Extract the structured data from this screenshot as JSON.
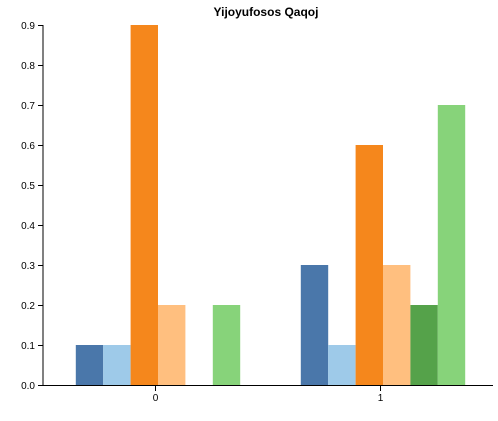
{
  "chart_data": {
    "type": "bar",
    "title": "Yijoyufosos Qaqoj",
    "xlabel": "",
    "ylabel": "",
    "categories": [
      "0",
      "1"
    ],
    "ylim": [
      0,
      0.9
    ],
    "yticks": [
      "0.0",
      "0.1",
      "0.2",
      "0.3",
      "0.4",
      "0.5",
      "0.6",
      "0.7",
      "0.8",
      "0.9"
    ],
    "grid": false,
    "legend": "none",
    "series": [
      {
        "color": "#4a77aa",
        "values": [
          0.1,
          0.3
        ]
      },
      {
        "color": "#9ecae9",
        "values": [
          0.1,
          0.1
        ]
      },
      {
        "color": "#f5871c",
        "values": [
          0.9,
          0.6
        ]
      },
      {
        "color": "#ffbf7f",
        "values": [
          0.2,
          0.3
        ]
      },
      {
        "color": "#55a24a",
        "values": [
          0.0,
          0.2
        ]
      },
      {
        "color": "#87d37a",
        "values": [
          0.2,
          0.7
        ]
      }
    ]
  }
}
